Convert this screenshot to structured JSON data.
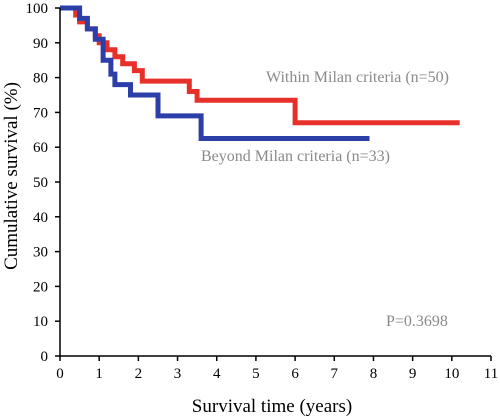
{
  "chart_data": {
    "type": "line",
    "step": true,
    "xlabel": "Survival time (years)",
    "ylabel": "Cumulative survival (%)",
    "xlim": [
      0,
      11
    ],
    "ylim": [
      0,
      100
    ],
    "xticks": [
      "0",
      "1",
      "2",
      "3",
      "4",
      "5",
      "6",
      "7",
      "8",
      "9",
      "10",
      "11"
    ],
    "yticks": [
      "0",
      "10",
      "20",
      "30",
      "40",
      "50",
      "60",
      "70",
      "80",
      "90",
      "100"
    ],
    "grid": false,
    "series": [
      {
        "name": "Within Milan criteria (n=50)",
        "color": "#e8302a",
        "points": [
          [
            0,
            100
          ],
          [
            0.4,
            100
          ],
          [
            0.4,
            98
          ],
          [
            0.5,
            98
          ],
          [
            0.5,
            96
          ],
          [
            0.7,
            96
          ],
          [
            0.7,
            94
          ],
          [
            0.9,
            94
          ],
          [
            0.9,
            92
          ],
          [
            1.0,
            92
          ],
          [
            1.0,
            90
          ],
          [
            1.2,
            90
          ],
          [
            1.2,
            88
          ],
          [
            1.4,
            88
          ],
          [
            1.4,
            86
          ],
          [
            1.6,
            86
          ],
          [
            1.6,
            84
          ],
          [
            1.9,
            84
          ],
          [
            1.9,
            82
          ],
          [
            2.1,
            82
          ],
          [
            2.1,
            79
          ],
          [
            3.3,
            79
          ],
          [
            3.3,
            76
          ],
          [
            3.5,
            76
          ],
          [
            3.5,
            73.5
          ],
          [
            6.0,
            73.5
          ],
          [
            6.0,
            67
          ],
          [
            10.2,
            67
          ]
        ]
      },
      {
        "name": "Beyond Milan criteria (n=33)",
        "color": "#2c3fa8",
        "points": [
          [
            0,
            100
          ],
          [
            0.5,
            100
          ],
          [
            0.5,
            97
          ],
          [
            0.7,
            97
          ],
          [
            0.7,
            94
          ],
          [
            0.9,
            94
          ],
          [
            0.9,
            91
          ],
          [
            1.1,
            91
          ],
          [
            1.1,
            85
          ],
          [
            1.3,
            85
          ],
          [
            1.3,
            81
          ],
          [
            1.4,
            81
          ],
          [
            1.4,
            78
          ],
          [
            1.8,
            78
          ],
          [
            1.8,
            75
          ],
          [
            2.5,
            75
          ],
          [
            2.5,
            69
          ],
          [
            3.6,
            69
          ],
          [
            3.6,
            62.5
          ],
          [
            7.9,
            62.5
          ]
        ]
      }
    ],
    "annotations": [
      "P=0.3698"
    ]
  }
}
